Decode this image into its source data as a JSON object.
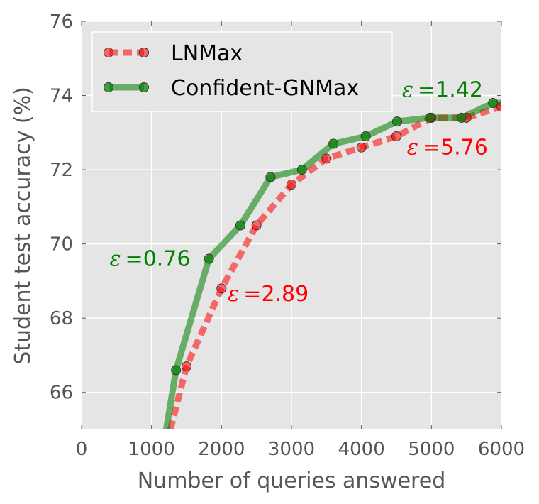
{
  "chart_data": {
    "type": "line",
    "title": "",
    "xlabel": "Number of queries answered",
    "ylabel": "Student test accuracy (%)",
    "xlim": [
      0,
      6000
    ],
    "ylim": [
      65,
      76
    ],
    "xticks": [
      0,
      1000,
      2000,
      3000,
      4000,
      5000,
      6000
    ],
    "yticks": [
      66,
      68,
      70,
      72,
      74,
      76
    ],
    "grid": true,
    "legend_position": "top-left",
    "series": [
      {
        "name": "LNMax",
        "color": "#ff0000",
        "line_style": "dashed",
        "x": [
          1270,
          1500,
          2000,
          2500,
          3000,
          3500,
          4000,
          4500,
          5000,
          5500,
          6000
        ],
        "y": [
          65.0,
          66.7,
          68.8,
          70.5,
          71.6,
          72.3,
          72.6,
          72.9,
          73.4,
          73.4,
          73.7
        ],
        "markers": [
          {
            "x": 1500,
            "y": 66.7
          },
          {
            "x": 2000,
            "y": 68.8
          },
          {
            "x": 2500,
            "y": 70.5
          },
          {
            "x": 3000,
            "y": 71.6
          },
          {
            "x": 3500,
            "y": 72.3
          },
          {
            "x": 4000,
            "y": 72.6
          },
          {
            "x": 4500,
            "y": 72.9
          },
          {
            "x": 5000,
            "y": 73.4
          },
          {
            "x": 5500,
            "y": 73.4
          },
          {
            "x": 6000,
            "y": 73.7
          }
        ]
      },
      {
        "name": "Confident-GNMax",
        "color": "#008000",
        "line_style": "solid",
        "x": [
          1210,
          1350,
          1820,
          2270,
          2700,
          3150,
          3600,
          4060,
          4510,
          4980,
          5430,
          5880,
          6000
        ],
        "y": [
          65.0,
          66.6,
          69.6,
          70.5,
          71.8,
          72.0,
          72.7,
          72.9,
          73.3,
          73.4,
          73.4,
          73.8,
          73.8
        ],
        "markers": [
          {
            "x": 1350,
            "y": 66.6
          },
          {
            "x": 1820,
            "y": 69.6
          },
          {
            "x": 2270,
            "y": 70.5
          },
          {
            "x": 2700,
            "y": 71.8
          },
          {
            "x": 3150,
            "y": 72.0
          },
          {
            "x": 3600,
            "y": 72.7
          },
          {
            "x": 4060,
            "y": 72.9
          },
          {
            "x": 4510,
            "y": 73.3
          },
          {
            "x": 4980,
            "y": 73.4
          },
          {
            "x": 5430,
            "y": 73.4
          },
          {
            "x": 5880,
            "y": 73.8
          }
        ]
      }
    ],
    "annotations": [
      {
        "symbol": "ε",
        "value": "0.76",
        "color": "#008000",
        "x": 400,
        "y": 69.6
      },
      {
        "symbol": "ε",
        "value": "2.89",
        "color": "#ff0000",
        "x": 2090,
        "y": 68.65
      },
      {
        "symbol": "ε",
        "value": "1.42",
        "color": "#008000",
        "x": 4580,
        "y": 74.15
      },
      {
        "symbol": "ε",
        "value": "5.76",
        "color": "#ff0000",
        "x": 4650,
        "y": 72.6
      }
    ]
  }
}
